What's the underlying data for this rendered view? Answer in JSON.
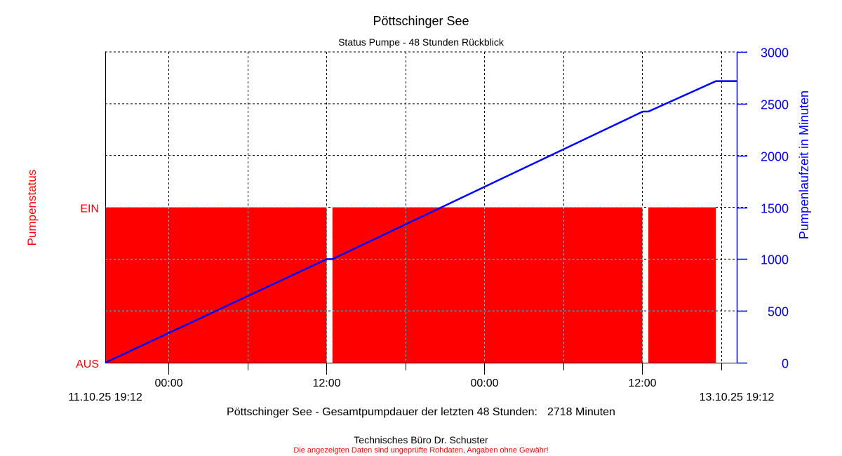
{
  "chart_data": {
    "type": "area+line",
    "title": "Pöttschinger See",
    "subtitle": "Status Pumpe - 48 Stunden Rückblick",
    "x_unit": "hours since start",
    "x_range": [
      0,
      48
    ],
    "x_start_label": "11.10.25 19:12",
    "x_end_label": "13.10.25 19:12",
    "x_ticks": [
      {
        "x": 4.8,
        "label": "00:00"
      },
      {
        "x": 10.8,
        "label": ""
      },
      {
        "x": 16.8,
        "label": "12:00"
      },
      {
        "x": 22.8,
        "label": ""
      },
      {
        "x": 28.8,
        "label": "00:00"
      },
      {
        "x": 34.8,
        "label": ""
      },
      {
        "x": 40.8,
        "label": "12:00"
      },
      {
        "x": 46.8,
        "label": ""
      }
    ],
    "left_axis": {
      "label": "Pumpenstatus",
      "ticks": [
        {
          "value": 0,
          "label": "AUS"
        },
        {
          "value": 1,
          "label": "EIN"
        }
      ],
      "color": "#ff0000"
    },
    "right_axis": {
      "label": "Pumpenlaufzeit in Minuten",
      "range": [
        0,
        3000
      ],
      "ticks": [
        0,
        500,
        1000,
        1500,
        2000,
        2500,
        3000
      ],
      "color": "#0000ff"
    },
    "pump_on_intervals": [
      [
        0,
        16.84
      ],
      [
        17.27,
        40.86
      ],
      [
        41.28,
        46.42
      ]
    ],
    "series": [
      {
        "name": "Pumpenlaufzeit",
        "color": "#0000ff",
        "points": [
          [
            0,
            0
          ],
          [
            16.84,
            1000
          ],
          [
            17.27,
            1000
          ],
          [
            40.86,
            2424
          ],
          [
            41.28,
            2424
          ],
          [
            46.42,
            2718
          ],
          [
            48,
            2718
          ]
        ]
      }
    ],
    "grid": true
  },
  "summary": {
    "text": "Pöttschinger See - Gesamtpumpdauer der letzten 48 Stunden:",
    "value": "2718 Minuten"
  },
  "footer": {
    "company": "Technisches Büro Dr. Schuster",
    "disclaimer": "Die angezeigten Daten sind ungeprüfte Rohdaten, Angaben ohne Gewähr!"
  }
}
